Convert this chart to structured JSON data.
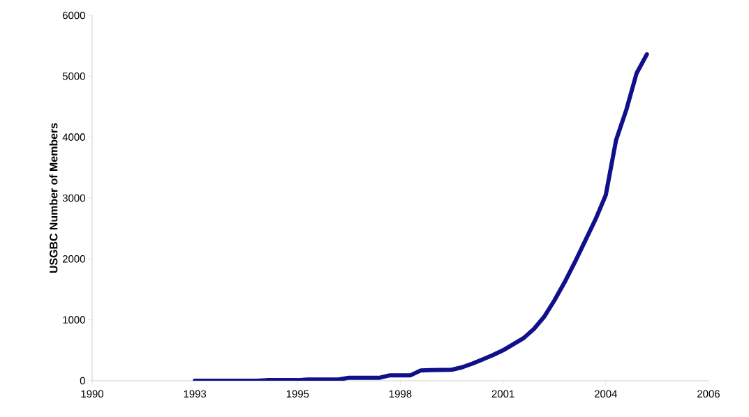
{
  "chart_data": {
    "type": "line",
    "ylabel": "USGBC Number of Members",
    "categories": [
      "1990",
      null,
      null,
      null,
      null,
      null,
      null,
      null,
      null,
      null,
      "1993",
      null,
      null,
      null,
      null,
      null,
      null,
      null,
      null,
      null,
      "1995",
      null,
      null,
      null,
      null,
      null,
      null,
      null,
      null,
      null,
      "1998",
      null,
      null,
      null,
      null,
      null,
      null,
      null,
      null,
      null,
      "2001",
      null,
      null,
      null,
      null,
      null,
      null,
      null,
      null,
      null,
      "2004",
      null,
      null,
      null,
      null,
      null,
      null,
      null,
      null,
      null,
      "2006"
    ],
    "series": [
      {
        "color": "#10108a",
        "values": [
          null,
          null,
          null,
          null,
          null,
          null,
          null,
          null,
          null,
          null,
          0,
          0,
          0,
          0,
          0,
          0,
          0,
          10,
          10,
          10,
          10,
          20,
          20,
          20,
          20,
          50,
          50,
          50,
          50,
          90,
          90,
          90,
          170,
          175,
          178,
          180,
          220,
          280,
          350,
          420,
          500,
          600,
          700,
          850,
          1050,
          1320,
          1620,
          1950,
          2300,
          2650,
          3050,
          3950,
          4450,
          5050,
          5360,
          null,
          null,
          null,
          null,
          null,
          null
        ]
      }
    ],
    "ylim": [
      0,
      6000
    ],
    "yticks": [
      0,
      1000,
      2000,
      3000,
      4000,
      5000,
      6000
    ],
    "grid": false,
    "marker": "none",
    "line_style": "solid"
  }
}
